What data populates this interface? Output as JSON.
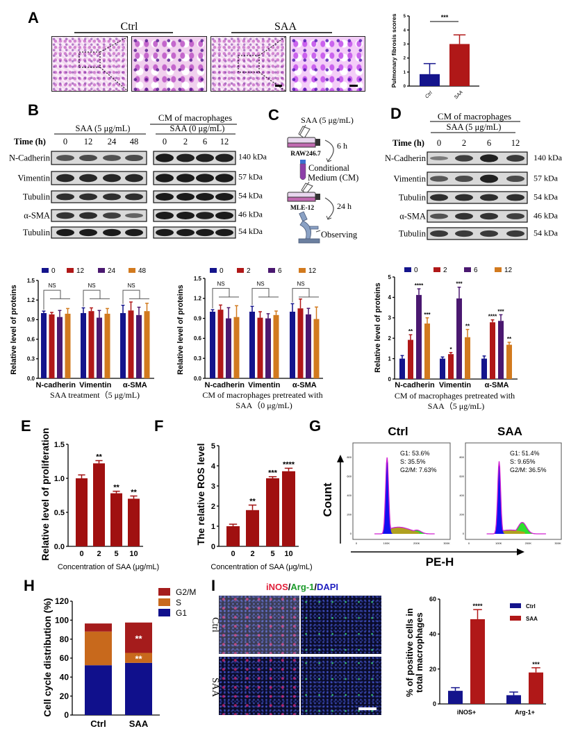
{
  "panel_labels": {
    "A": "A",
    "B": "B",
    "C": "C",
    "D": "D",
    "E": "E",
    "F": "F",
    "G": "G",
    "H": "H",
    "I": "I"
  },
  "colors": {
    "navy": "#14148c",
    "red": "#b01818",
    "purple": "#4a1870",
    "orange": "#d27a1e",
    "darkred": "#a01010",
    "g1": "#10108c",
    "s": "#c8691c",
    "g2m": "#a51c1c"
  },
  "panel_a": {
    "group_ctrl": "Ctrl",
    "group_saa": "SAA"
  },
  "panel_b": {
    "header_left": "SAA (5 μg/mL)",
    "header_right_top": "CM of macrophages",
    "header_right_sub": "SAA (0 μg/mL)",
    "time_label": "Time (h)",
    "lanes_left": [
      "0",
      "12",
      "24",
      "48"
    ],
    "lanes_right": [
      "0",
      "2",
      "6",
      "12"
    ],
    "proteins": [
      "N-Cadherin",
      "Vimentin",
      "Tubulin",
      "α-SMA",
      "Tubulin"
    ],
    "sizes": [
      "140 kDa",
      "57 kDa",
      "54 kDa",
      "46 kDa",
      "54 kDa"
    ]
  },
  "panel_c": {
    "treatment": "SAA (5 μg/mL)",
    "cell1": "RAW246.7",
    "time1": "6 h",
    "medium_line1": "Conditional",
    "medium_line2": "Medium (CM)",
    "cell2": "MLE-12",
    "time2": "24 h",
    "observe": "Observing"
  },
  "panel_d": {
    "header_top": "CM of macrophages",
    "header_sub": "SAA (5 μg/mL)",
    "time_label": "Time (h)",
    "lanes": [
      "0",
      "2",
      "6",
      "12"
    ],
    "proteins": [
      "N-Cadherin",
      "Vimentin",
      "Tubulin",
      "α-SMA",
      "Tubulin"
    ],
    "sizes": [
      "140 kDa",
      "57 kDa",
      "54 kDa",
      "46 kDa",
      "54 kDa"
    ]
  },
  "panel_g": {
    "count_label": "Count",
    "x_label": "PE-H",
    "x_ticks": [
      "0",
      "100K",
      "200K",
      "300K"
    ],
    "y_ticks": [
      "0",
      "200",
      "400",
      "600",
      "800"
    ],
    "plots": [
      {
        "title": "Ctrl",
        "g1": "G1: 53.6%",
        "s": "S: 35.5%",
        "g2m": "G2/M: 7.63%"
      },
      {
        "title": "SAA",
        "g1": "G1: 51.4%",
        "s": "S: 9.65%",
        "g2m": "G2/M: 36.5%"
      }
    ]
  },
  "panel_i": {
    "title_parts": [
      "iNOS",
      "/",
      "Arg-1",
      "/",
      "DAPI"
    ],
    "row_labels": [
      "Ctrl",
      "SAA"
    ]
  },
  "chart_data": [
    {
      "id": "A",
      "type": "bar",
      "title": "",
      "xlabel": "",
      "ylabel": "Pulmonary fibrosis scores",
      "categories": [
        "Ctrl",
        "SAA"
      ],
      "ylim": [
        0,
        5
      ],
      "yticks": [
        0,
        1,
        2,
        3,
        4,
        5
      ],
      "series": [
        {
          "values": [
            0.85,
            3.0
          ],
          "errors": [
            0.75,
            0.65
          ],
          "colors": [
            "#14148c",
            "#b01818"
          ]
        }
      ],
      "comparison": "***",
      "grid": false
    },
    {
      "id": "B1",
      "type": "bar",
      "xlabel": "SAA treatment（5 μg/mL)",
      "ylabel": "Relative level of proteins",
      "categories": [
        "N-cadherin",
        "Vimentin",
        "α-SMA"
      ],
      "ylim": [
        0,
        1.5
      ],
      "yticks": [
        "0.0",
        "0.3",
        "0.6",
        "0.9",
        "1.2",
        "1.5"
      ],
      "legend": "top",
      "series": [
        {
          "name": "0",
          "values": [
            1.0,
            1.0,
            1.0
          ],
          "errors": [
            0.03,
            0.08,
            0.12
          ],
          "color": "#14148c"
        },
        {
          "name": "12",
          "values": [
            0.98,
            1.03,
            1.04
          ],
          "errors": [
            0.03,
            0.05,
            0.13
          ],
          "color": "#b01818"
        },
        {
          "name": "24",
          "values": [
            0.94,
            0.93,
            0.97
          ],
          "errors": [
            0.1,
            0.11,
            0.12
          ],
          "color": "#4a1870"
        },
        {
          "name": "48",
          "values": [
            0.99,
            0.99,
            1.03
          ],
          "errors": [
            0.08,
            0.08,
            0.12
          ],
          "color": "#d27a1e"
        }
      ],
      "annotations": [
        "NS",
        "NS",
        "NS"
      ],
      "grid": false
    },
    {
      "id": "B2",
      "type": "bar",
      "xlabel": "CM of macrophages pretreated with",
      "xlabel2": "SAA（0 μg/mL)",
      "ylabel": "Relative level of proteins",
      "categories": [
        "N-cadherin",
        "Vimentin",
        "α-SMA"
      ],
      "ylim": [
        0,
        1.5
      ],
      "yticks": [
        "0.0",
        "0.3",
        "0.6",
        "0.9",
        "1.2",
        "1.5"
      ],
      "legend": "top",
      "series": [
        {
          "name": "0",
          "values": [
            1.0,
            1.0,
            1.0
          ],
          "errors": [
            0.03,
            0.08,
            0.12
          ],
          "color": "#14148c"
        },
        {
          "name": "2",
          "values": [
            1.03,
            0.91,
            1.05
          ],
          "errors": [
            0.07,
            0.09,
            0.14
          ],
          "color": "#b01818"
        },
        {
          "name": "6",
          "values": [
            0.9,
            0.9,
            0.96
          ],
          "errors": [
            0.16,
            0.07,
            0.09
          ],
          "color": "#4a1870"
        },
        {
          "name": "12",
          "values": [
            0.92,
            0.95,
            0.89
          ],
          "errors": [
            0.17,
            0.06,
            0.18
          ],
          "color": "#d27a1e"
        }
      ],
      "annotations": [
        "NS",
        "NS",
        "NS"
      ],
      "grid": false
    },
    {
      "id": "B3",
      "type": "bar",
      "xlabel": "CM of macrophages pretreated with",
      "xlabel2": "SAA（5 μg/mL)",
      "ylabel": "Relative level of proteins",
      "categories": [
        "N-cadherin",
        "Vimentin",
        "α-SMA"
      ],
      "ylim": [
        0,
        5
      ],
      "yticks": [
        "0",
        "1",
        "2",
        "3",
        "4",
        "5"
      ],
      "legend": "top",
      "series": [
        {
          "name": "0",
          "values": [
            1.0,
            1.0,
            1.0
          ],
          "errors": [
            0.15,
            0.08,
            0.13
          ],
          "color": "#14148c",
          "stars": [
            "",
            "",
            ""
          ]
        },
        {
          "name": "2",
          "values": [
            1.92,
            1.22,
            2.78
          ],
          "errors": [
            0.25,
            0.08,
            0.12
          ],
          "color": "#b01818",
          "stars": [
            "**",
            "*",
            "****"
          ]
        },
        {
          "name": "6",
          "values": [
            4.12,
            3.95,
            2.85
          ],
          "errors": [
            0.3,
            0.55,
            0.3
          ],
          "color": "#4a1870",
          "stars": [
            "****",
            "***",
            "***"
          ]
        },
        {
          "name": "12",
          "values": [
            2.72,
            2.05,
            1.68
          ],
          "errors": [
            0.28,
            0.38,
            0.12
          ],
          "color": "#d27a1e",
          "stars": [
            "***",
            "**",
            "**"
          ]
        }
      ],
      "grid": false
    },
    {
      "id": "E",
      "type": "bar",
      "xlabel": "Concentration of SAA (μg/mL)",
      "ylabel": "Relative level of proliferation",
      "categories": [
        "0",
        "2",
        "5",
        "10"
      ],
      "ylim": [
        0,
        1.5
      ],
      "yticks": [
        "0.0",
        "0.5",
        "1.0",
        "1.5"
      ],
      "series": [
        {
          "values": [
            1.0,
            1.22,
            0.78,
            0.7
          ],
          "errors": [
            0.05,
            0.04,
            0.03,
            0.04
          ],
          "color": "#a01010",
          "stars": [
            "",
            "**",
            "**",
            "**"
          ]
        }
      ],
      "grid": false
    },
    {
      "id": "F",
      "type": "bar",
      "xlabel": "Concentration of SAA (μg/mL)",
      "ylabel": "The relative ROS level",
      "categories": [
        "0",
        "2",
        "5",
        "10"
      ],
      "ylim": [
        0,
        5
      ],
      "yticks": [
        "0",
        "1",
        "2",
        "3",
        "4",
        "5"
      ],
      "series": [
        {
          "values": [
            1.0,
            1.8,
            3.38,
            3.73
          ],
          "errors": [
            0.1,
            0.25,
            0.08,
            0.15
          ],
          "color": "#a01010",
          "stars": [
            "",
            "**",
            "***",
            "****"
          ]
        }
      ],
      "grid": false
    },
    {
      "id": "H",
      "type": "bar",
      "stacked": true,
      "ylabel": "Cell cycle distribution (%)",
      "categories": [
        "Ctrl",
        "SAA"
      ],
      "ylim": [
        0,
        120
      ],
      "yticks": [
        "0",
        "20",
        "40",
        "60",
        "80",
        "100",
        "120"
      ],
      "legend": "right",
      "series": [
        {
          "name": "G1",
          "values": [
            52.5,
            55
          ],
          "color": "#10108c",
          "stars": [
            "",
            ""
          ]
        },
        {
          "name": "S",
          "values": [
            35.5,
            10.5
          ],
          "color": "#c8691c",
          "stars": [
            "",
            "**"
          ]
        },
        {
          "name": "G2/M",
          "values": [
            8.5,
            32
          ],
          "color": "#a51c1c",
          "stars": [
            "",
            "**"
          ]
        }
      ],
      "grid": false
    },
    {
      "id": "I",
      "type": "bar",
      "ylabel": "% of positive cells in",
      "ylabel2": "total macrophages",
      "categories": [
        "iNOS+",
        "Arg-1+"
      ],
      "ylim": [
        0,
        60
      ],
      "yticks": [
        "0",
        "20",
        "40",
        "60"
      ],
      "legend": "top-right",
      "series": [
        {
          "name": "Ctrl",
          "values": [
            7.5,
            5
          ],
          "errors": [
            1.8,
            1.8
          ],
          "color": "#14148c",
          "stars": [
            "",
            ""
          ]
        },
        {
          "name": "SAA",
          "values": [
            48.5,
            18
          ],
          "errors": [
            5.5,
            2.7
          ],
          "color": "#b01818",
          "stars": [
            "****",
            "***"
          ]
        }
      ],
      "grid": false
    }
  ]
}
